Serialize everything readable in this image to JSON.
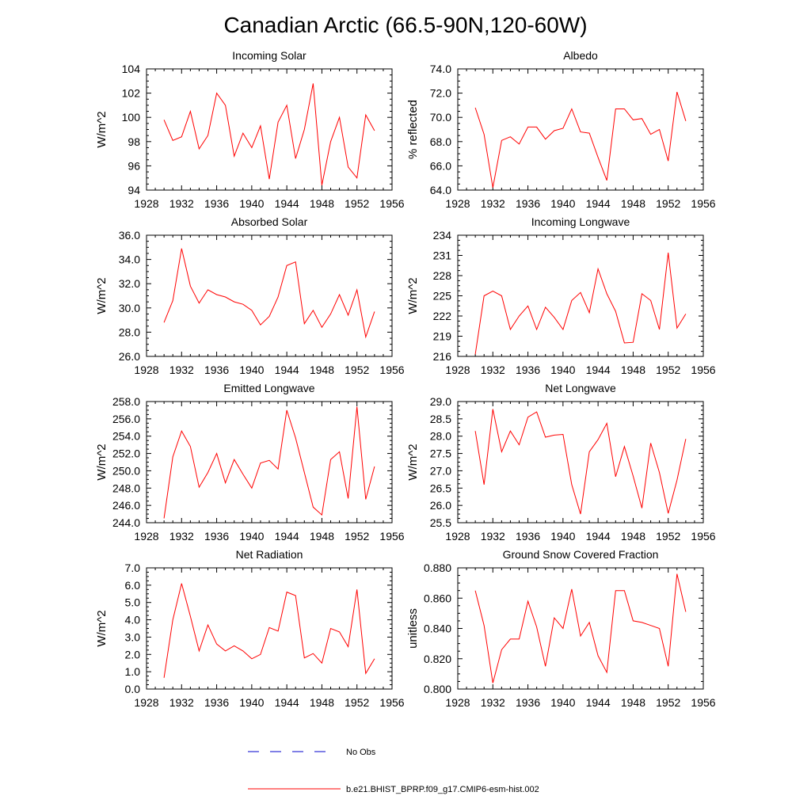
{
  "title": "Canadian Arctic (66.5-90N,120-60W)",
  "legend": {
    "obs_label": "No Obs",
    "obs_color": "#0000cc",
    "model_label": "b.e21.BHIST_BPRP.f09_g17.CMIP6-esm-hist.002",
    "model_color": "#ff0000"
  },
  "chart_data": [
    {
      "type": "line",
      "title": "Incoming Solar",
      "ylabel": "W/m^2",
      "xlim": [
        1928,
        1956
      ],
      "ylim": [
        94,
        104
      ],
      "xticks": [
        "1928",
        "1932",
        "1936",
        "1940",
        "1944",
        "1948",
        "1952",
        "1956"
      ],
      "yticks": [
        "94",
        "96",
        "98",
        "100",
        "102",
        "104"
      ],
      "series": [
        {
          "x": [
            1930,
            1931,
            1932,
            1933,
            1934,
            1935,
            1936,
            1937,
            1938,
            1939,
            1940,
            1941,
            1942,
            1943,
            1944,
            1945,
            1946,
            1947,
            1948,
            1949,
            1950,
            1951,
            1952,
            1953,
            1954
          ],
          "values": [
            99.8,
            98.1,
            98.4,
            100.5,
            97.4,
            98.5,
            102.0,
            101.0,
            96.8,
            98.7,
            97.5,
            99.3,
            94.9,
            99.6,
            101.0,
            96.6,
            99.0,
            102.8,
            94.4,
            98.0,
            100.0,
            95.9,
            95.0,
            100.2,
            98.9
          ]
        }
      ]
    },
    {
      "type": "line",
      "title": "Albedo",
      "ylabel": "% reflected",
      "xlim": [
        1928,
        1956
      ],
      "ylim": [
        64.0,
        74.0
      ],
      "xticks": [
        "1928",
        "1932",
        "1936",
        "1940",
        "1944",
        "1948",
        "1952",
        "1956"
      ],
      "yticks": [
        "64.0",
        "66.0",
        "68.0",
        "70.0",
        "72.0",
        "74.0"
      ],
      "series": [
        {
          "x": [
            1930,
            1931,
            1932,
            1933,
            1934,
            1935,
            1936,
            1937,
            1938,
            1939,
            1940,
            1941,
            1942,
            1943,
            1944,
            1945,
            1946,
            1947,
            1948,
            1949,
            1950,
            1951,
            1952,
            1953,
            1954
          ],
          "values": [
            70.8,
            68.6,
            64.2,
            68.1,
            68.4,
            67.8,
            69.2,
            69.2,
            68.2,
            68.9,
            69.1,
            70.7,
            68.8,
            68.7,
            66.7,
            64.8,
            70.7,
            70.7,
            69.8,
            69.9,
            68.6,
            69.0,
            66.4,
            72.1,
            69.7
          ]
        }
      ]
    },
    {
      "type": "line",
      "title": "Absorbed Solar",
      "ylabel": "W/m^2",
      "xlim": [
        1928,
        1956
      ],
      "ylim": [
        26.0,
        36.0
      ],
      "xticks": [
        "1928",
        "1932",
        "1936",
        "1940",
        "1944",
        "1948",
        "1952",
        "1956"
      ],
      "yticks": [
        "26.0",
        "28.0",
        "30.0",
        "32.0",
        "34.0",
        "36.0"
      ],
      "series": [
        {
          "x": [
            1930,
            1931,
            1932,
            1933,
            1934,
            1935,
            1936,
            1937,
            1938,
            1939,
            1940,
            1941,
            1942,
            1943,
            1944,
            1945,
            1946,
            1947,
            1948,
            1949,
            1950,
            1951,
            1952,
            1953,
            1954
          ],
          "values": [
            28.8,
            30.6,
            34.9,
            31.8,
            30.4,
            31.5,
            31.1,
            30.9,
            30.5,
            30.3,
            29.8,
            28.6,
            29.3,
            30.9,
            33.5,
            33.8,
            28.7,
            29.8,
            28.4,
            29.5,
            31.1,
            29.4,
            31.5,
            27.6,
            29.7
          ]
        }
      ]
    },
    {
      "type": "line",
      "title": "Incoming Longwave",
      "ylabel": "W/m^2",
      "xlim": [
        1928,
        1956
      ],
      "ylim": [
        216,
        234
      ],
      "xticks": [
        "1928",
        "1932",
        "1936",
        "1940",
        "1944",
        "1948",
        "1952",
        "1956"
      ],
      "yticks": [
        "216",
        "219",
        "222",
        "225",
        "228",
        "231",
        "234"
      ],
      "series": [
        {
          "x": [
            1930,
            1931,
            1932,
            1933,
            1934,
            1935,
            1936,
            1937,
            1938,
            1939,
            1940,
            1941,
            1942,
            1943,
            1944,
            1945,
            1946,
            1947,
            1948,
            1949,
            1950,
            1951,
            1952,
            1953,
            1954
          ],
          "values": [
            216.3,
            225.0,
            225.7,
            225.0,
            220.0,
            222.0,
            223.5,
            220.0,
            223.3,
            221.8,
            220.0,
            224.3,
            225.5,
            222.5,
            229.0,
            225.3,
            222.7,
            218.0,
            218.1,
            225.3,
            224.3,
            220.0,
            231.4,
            220.2,
            222.3
          ]
        }
      ]
    },
    {
      "type": "line",
      "title": "Emitted Longwave",
      "ylabel": "W/m^2",
      "xlim": [
        1928,
        1956
      ],
      "ylim": [
        244.0,
        258.0
      ],
      "xticks": [
        "1928",
        "1932",
        "1936",
        "1940",
        "1944",
        "1948",
        "1952",
        "1956"
      ],
      "yticks": [
        "244.0",
        "246.0",
        "248.0",
        "250.0",
        "252.0",
        "254.0",
        "256.0",
        "258.0"
      ],
      "series": [
        {
          "x": [
            1930,
            1931,
            1932,
            1933,
            1934,
            1935,
            1936,
            1937,
            1938,
            1939,
            1940,
            1941,
            1942,
            1943,
            1944,
            1945,
            1946,
            1947,
            1948,
            1949,
            1950,
            1951,
            1952,
            1953,
            1954
          ],
          "values": [
            244.5,
            251.6,
            254.6,
            252.8,
            248.1,
            249.8,
            252.0,
            248.6,
            251.3,
            249.6,
            248.0,
            250.9,
            251.2,
            250.2,
            257.0,
            253.8,
            249.8,
            245.8,
            244.9,
            251.3,
            252.2,
            246.8,
            257.4,
            246.7,
            250.5
          ]
        }
      ]
    },
    {
      "type": "line",
      "title": "Net Longwave",
      "ylabel": "W/m^2",
      "xlim": [
        1928,
        1956
      ],
      "ylim": [
        25.5,
        29.0
      ],
      "xticks": [
        "1928",
        "1932",
        "1936",
        "1940",
        "1944",
        "1948",
        "1952",
        "1956"
      ],
      "yticks": [
        "25.5",
        "26.0",
        "26.5",
        "27.0",
        "27.5",
        "28.0",
        "28.5",
        "29.0"
      ],
      "series": [
        {
          "x": [
            1930,
            1931,
            1932,
            1933,
            1934,
            1935,
            1936,
            1937,
            1938,
            1939,
            1940,
            1941,
            1942,
            1943,
            1944,
            1945,
            1946,
            1947,
            1948,
            1949,
            1950,
            1951,
            1952,
            1953,
            1954
          ],
          "values": [
            28.15,
            26.6,
            28.78,
            27.55,
            28.15,
            27.75,
            28.55,
            28.7,
            27.97,
            28.03,
            28.05,
            26.6,
            25.75,
            27.55,
            27.9,
            28.37,
            26.83,
            27.7,
            26.85,
            25.92,
            27.8,
            26.95,
            25.77,
            26.73,
            27.92
          ]
        }
      ]
    },
    {
      "type": "line",
      "title": "Net Radiation",
      "ylabel": "W/m^2",
      "xlim": [
        1928,
        1956
      ],
      "ylim": [
        0.0,
        7.0
      ],
      "xticks": [
        "1928",
        "1932",
        "1936",
        "1940",
        "1944",
        "1948",
        "1952",
        "1956"
      ],
      "yticks": [
        "0.0",
        "1.0",
        "2.0",
        "3.0",
        "4.0",
        "5.0",
        "6.0",
        "7.0"
      ],
      "series": [
        {
          "x": [
            1930,
            1931,
            1932,
            1933,
            1934,
            1935,
            1936,
            1937,
            1938,
            1939,
            1940,
            1941,
            1942,
            1943,
            1944,
            1945,
            1946,
            1947,
            1948,
            1949,
            1950,
            1951,
            1952,
            1953,
            1954
          ],
          "values": [
            0.65,
            4.0,
            6.1,
            4.2,
            2.2,
            3.7,
            2.6,
            2.2,
            2.5,
            2.2,
            1.75,
            2.0,
            3.55,
            3.35,
            5.6,
            5.4,
            1.8,
            2.05,
            1.5,
            3.5,
            3.3,
            2.45,
            5.75,
            0.9,
            1.75
          ]
        }
      ]
    },
    {
      "type": "line",
      "title": "Ground Snow Covered Fraction",
      "ylabel": "unitless",
      "xlim": [
        1928,
        1956
      ],
      "ylim": [
        0.8,
        0.88
      ],
      "xticks": [
        "1928",
        "1932",
        "1936",
        "1940",
        "1944",
        "1948",
        "1952",
        "1956"
      ],
      "yticks": [
        "0.800",
        "0.820",
        "0.840",
        "0.860",
        "0.880"
      ],
      "series": [
        {
          "x": [
            1930,
            1931,
            1932,
            1933,
            1934,
            1935,
            1936,
            1937,
            1938,
            1939,
            1940,
            1941,
            1942,
            1943,
            1944,
            1945,
            1946,
            1947,
            1948,
            1949,
            1950,
            1951,
            1952,
            1953,
            1954
          ],
          "values": [
            0.865,
            0.842,
            0.804,
            0.826,
            0.833,
            0.833,
            0.858,
            0.841,
            0.815,
            0.847,
            0.84,
            0.866,
            0.835,
            0.844,
            0.822,
            0.811,
            0.865,
            0.865,
            0.845,
            0.844,
            0.842,
            0.84,
            0.815,
            0.876,
            0.851
          ]
        }
      ]
    }
  ]
}
